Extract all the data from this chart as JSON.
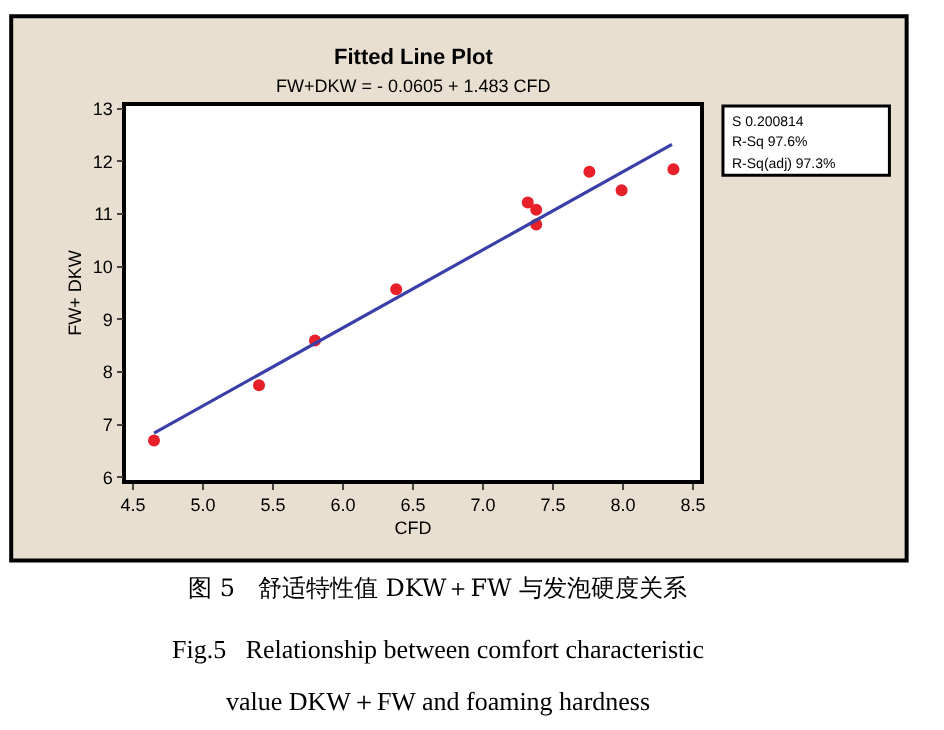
{
  "chart_data": {
    "type": "scatter",
    "title": "Fitted Line Plot",
    "subtitle": "FW+DKW = - 0.0605 + 1.483 CFD",
    "xlabel": "CFD",
    "ylabel": "FW+ DKW",
    "series": [
      {
        "color": "#e8202a",
        "marker": "circle",
        "x": [
          4.65,
          5.4,
          5.8,
          6.38,
          7.32,
          7.38,
          7.38,
          7.76,
          7.99,
          8.36
        ],
        "values": [
          6.7,
          7.75,
          8.6,
          9.57,
          11.22,
          11.08,
          10.8,
          11.8,
          11.45,
          11.85
        ]
      },
      {
        "type": "line",
        "color": "#3a3fa8",
        "marker": "none",
        "line_style": "solid",
        "x": [
          4.65,
          8.35
        ],
        "values": [
          6.84,
          12.32
        ]
      }
    ],
    "xlim": [
      4.45,
      8.55
    ],
    "xticks": [
      4.5,
      {
        "value": 5,
        "label": "5.0"
      },
      5.5,
      {
        "value": 6,
        "label": "6.0"
      },
      6.5,
      {
        "value": 7,
        "label": "7.0"
      },
      7.5,
      {
        "value": 8,
        "label": "8.0"
      },
      8.5
    ],
    "ylim": [
      5.95,
      13.05
    ],
    "yticks": [
      6,
      7,
      8,
      9,
      10,
      11,
      12,
      13
    ],
    "annotations": [
      "S 0.200814",
      "R-Sq 97.6%",
      "R-Sq(adj) 97.3%",
      "图 5   舒适特性值 DKW＋FW 与发泡硬度关系",
      "Fig.5   Relationship between comfort characteristic",
      "value DKW＋FW and foaming hardness"
    ]
  }
}
